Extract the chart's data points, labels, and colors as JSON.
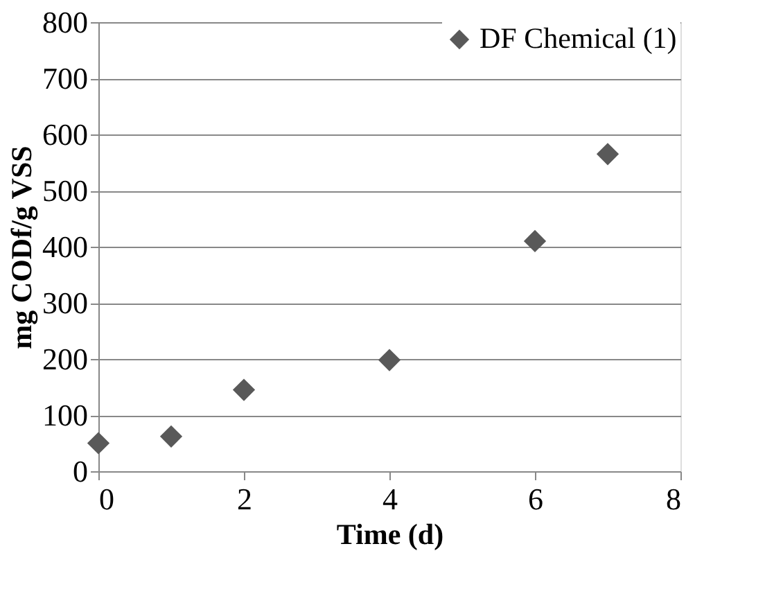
{
  "chart_data": {
    "type": "scatter",
    "xlabel": "Time (d)",
    "ylabel": "mg CODf/g VSS",
    "x": [
      0,
      1,
      2,
      4,
      6,
      7
    ],
    "series": [
      {
        "name": "DF Chemical (1)",
        "color": "#595959",
        "values": [
          50,
          62,
          145,
          198,
          410,
          565
        ]
      }
    ],
    "xlim": [
      0,
      8
    ],
    "xticks": [
      0,
      2,
      4,
      6,
      8
    ],
    "ylim": [
      0,
      800
    ],
    "yticks": [
      0,
      100,
      200,
      300,
      400,
      500,
      600,
      700,
      800
    ],
    "grid": "y",
    "legend": "top right",
    "marker": "diamond"
  }
}
